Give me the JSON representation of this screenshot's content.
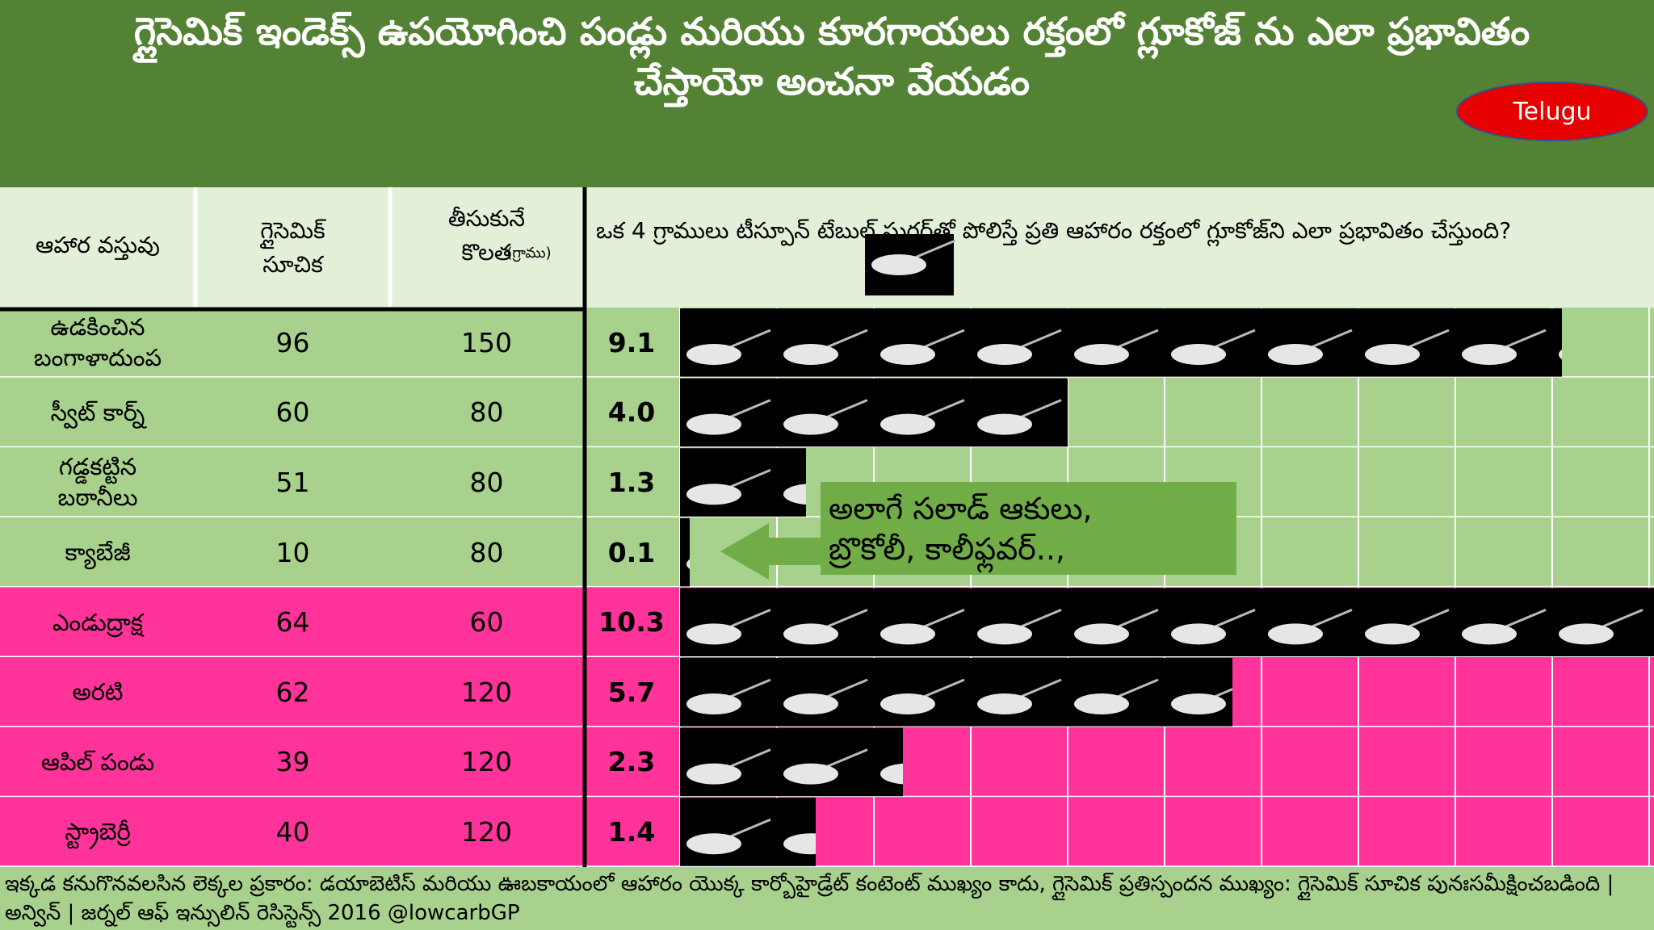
{
  "header": {
    "title": "గ్లైసెమిక్ ఇండెక్స్ ఉపయోగించి పండ్లు మరియు కూరగాయలు రక్తంలో గ్లూకోజ్ ను ఎలా ప్రభావితం చేస్తాయో అంచనా వేయడం",
    "language": "Telugu"
  },
  "table": {
    "columns": [
      "ఆహార వస్తువు",
      "గ్లైసెమిక్\nసూచిక",
      "తీసుకునే\nకొలత",
      "ఒక 4 గ్రాములు టీస్పూన్ టేబుల్ షుగర్‌తో పోలిస్తే ప్రతి ఆహారం రక్తంలో గ్లూకోజ్‌ని ఎలా ప్రభావితం చేస్తుంది?"
    ],
    "serving_unit": "(గ్రాము)",
    "rows": [
      {
        "food": "ఉడకించిన\nబంగాళాదుంప",
        "gi": 96,
        "serving": 150,
        "spoons": {
          "value": 9.1,
          "label": "9.1"
        }
      },
      {
        "food": "స్వీట్ కార్న్",
        "gi": 60,
        "serving": 80,
        "spoons": {
          "value": 4.0,
          "label": "4.0"
        }
      },
      {
        "food": "గడ్డకట్టిన\nబఠానీలు",
        "gi": 51,
        "serving": 80,
        "spoons": {
          "value": 1.3,
          "label": "1.3"
        }
      },
      {
        "food": "క్యాబేజీ",
        "gi": 10,
        "serving": 80,
        "spoons": {
          "value": 0.1,
          "label": "0.1"
        }
      },
      {
        "food": "ఎండుద్రాక్ష",
        "gi": 64,
        "serving": 60,
        "spoons": {
          "value": 10.3,
          "label": "10.3"
        }
      },
      {
        "food": "అరటి",
        "gi": 62,
        "serving": 120,
        "spoons": {
          "value": 5.7,
          "label": "5.7"
        }
      },
      {
        "food": "ఆపిల్ పండు",
        "gi": 39,
        "serving": 120,
        "spoons": {
          "value": 2.3,
          "label": "2.3"
        }
      },
      {
        "food": "స్ట్రాబెర్రీ",
        "gi": 40,
        "serving": 120,
        "spoons": {
          "value": 1.4,
          "label": "1.4"
        }
      }
    ]
  },
  "callout": "అలాగే సలాడ్ ఆకులు,\nబ్రొకోలీ, కాలీఫ్లవర్..,",
  "footer": "ఇక్కడ కనుగొనవలసిన లెక్కల ప్రకారం: డయాబెటిస్ మరియు ఊబకాయంలో ఆహారం యొక్క కార్బోహైడ్రేట్ కంటెంట్ ముఖ్యం కాదు, గ్లైసెమిక్ ప్రతిస్పందన ముఖ్యం: గ్లైసెమిక్ సూచిక పునఃసమీక్షించబడింది | అన్విన్ | జర్నల్ ఆఫ్ ఇన్సులిన్ రెసిస్టెన్స్ 2016 @lowcarbGP"
}
